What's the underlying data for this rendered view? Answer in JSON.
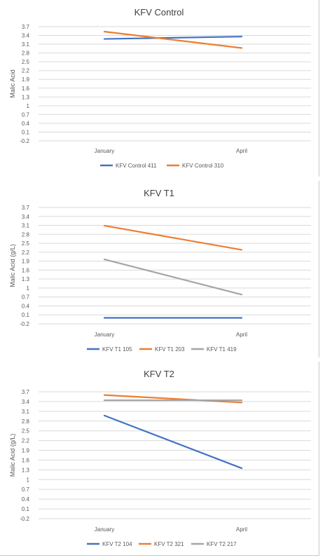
{
  "chart_data": [
    {
      "type": "line",
      "title": "KFV Control",
      "ylabel": "Malic Acid",
      "xlabel": "",
      "categories": [
        "January",
        "April"
      ],
      "yticks": [
        "3.7",
        "3.4",
        "3.1",
        "2.8",
        "2.5",
        "2.2",
        "1.9",
        "1.6",
        "1.3",
        "1",
        "0.7",
        "0.4",
        "0.1",
        "-0.2"
      ],
      "ylim": [
        -0.2,
        3.7
      ],
      "grid": true,
      "legend": "bottom",
      "series": [
        {
          "name": "KFV Control 411",
          "values": [
            3.28,
            3.36
          ],
          "color": "#4472c4"
        },
        {
          "name": "KFV Control 310",
          "values": [
            3.53,
            2.97
          ],
          "color": "#ed7d31"
        }
      ]
    },
    {
      "type": "line",
      "title": "KFV T1",
      "ylabel": "Malic Acid (g/L)",
      "xlabel": "",
      "categories": [
        "January",
        "April"
      ],
      "yticks": [
        "3.7",
        "3.4",
        "3.1",
        "2.8",
        "2.5",
        "2.2",
        "1.9",
        "1.6",
        "1.3",
        "1",
        "0.7",
        "0.4",
        "0.1",
        "-0.2"
      ],
      "ylim": [
        -0.2,
        3.7
      ],
      "grid": true,
      "legend": "bottom",
      "series": [
        {
          "name": "KFV T1 105",
          "values": [
            0.0,
            0.0
          ],
          "color": "#4472c4"
        },
        {
          "name": "KFV T1 203",
          "values": [
            3.09,
            2.28
          ],
          "color": "#ed7d31"
        },
        {
          "name": "KFV T1 419",
          "values": [
            1.96,
            0.78
          ],
          "color": "#a5a5a5"
        }
      ]
    },
    {
      "type": "line",
      "title": "KFV T2",
      "ylabel": "Malic Acid (g/L)",
      "xlabel": "",
      "categories": [
        "January",
        "April"
      ],
      "yticks": [
        "3.7",
        "3.4",
        "3.1",
        "2.8",
        "2.5",
        "2.2",
        "1.9",
        "1.6",
        "1.3",
        "1",
        "0.7",
        "0.4",
        "0.1",
        "-0.2"
      ],
      "ylim": [
        -0.2,
        3.7
      ],
      "grid": true,
      "legend": "bottom",
      "series": [
        {
          "name": "KFV T2 104",
          "values": [
            2.97,
            1.35
          ],
          "color": "#4472c4"
        },
        {
          "name": "KFV T2 321",
          "values": [
            3.6,
            3.37
          ],
          "color": "#ed7d31"
        },
        {
          "name": "KFV T2 217",
          "values": [
            3.44,
            3.44
          ],
          "color": "#a5a5a5"
        }
      ]
    }
  ]
}
